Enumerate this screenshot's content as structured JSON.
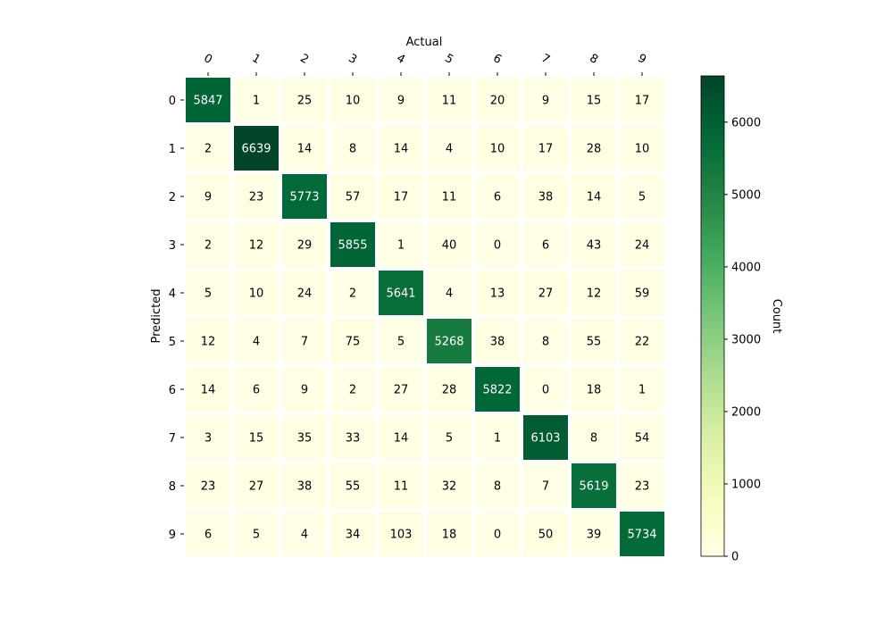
{
  "chart_data": {
    "type": "heatmap",
    "xlabel": "Actual",
    "ylabel": "Predicted",
    "x_categories": [
      "0",
      "1",
      "2",
      "3",
      "4",
      "5",
      "6",
      "7",
      "8",
      "9"
    ],
    "y_categories": [
      "0",
      "1",
      "2",
      "3",
      "4",
      "5",
      "6",
      "7",
      "8",
      "9"
    ],
    "values": [
      [
        5847,
        1,
        25,
        10,
        9,
        11,
        20,
        9,
        15,
        17
      ],
      [
        2,
        6639,
        14,
        8,
        14,
        4,
        10,
        17,
        28,
        10
      ],
      [
        9,
        23,
        5773,
        57,
        17,
        11,
        6,
        38,
        14,
        5
      ],
      [
        2,
        12,
        29,
        5855,
        1,
        40,
        0,
        6,
        43,
        24
      ],
      [
        5,
        10,
        24,
        2,
        5641,
        4,
        13,
        27,
        12,
        59
      ],
      [
        12,
        4,
        7,
        75,
        5,
        5268,
        38,
        8,
        55,
        22
      ],
      [
        14,
        6,
        9,
        2,
        27,
        28,
        5822,
        0,
        18,
        1
      ],
      [
        3,
        15,
        35,
        33,
        14,
        5,
        1,
        6103,
        8,
        54
      ],
      [
        23,
        27,
        38,
        55,
        11,
        32,
        8,
        7,
        5619,
        23
      ],
      [
        6,
        5,
        4,
        34,
        103,
        18,
        0,
        50,
        39,
        5734
      ]
    ],
    "colormap": "YlGn",
    "colorbar": {
      "label": "Count",
      "range": [
        0,
        6639
      ],
      "ticks": [
        0,
        1000,
        2000,
        3000,
        4000,
        5000,
        6000
      ]
    },
    "x_axis_position": "top",
    "tick_label_rotation_x": "-30deg",
    "grid": false
  }
}
